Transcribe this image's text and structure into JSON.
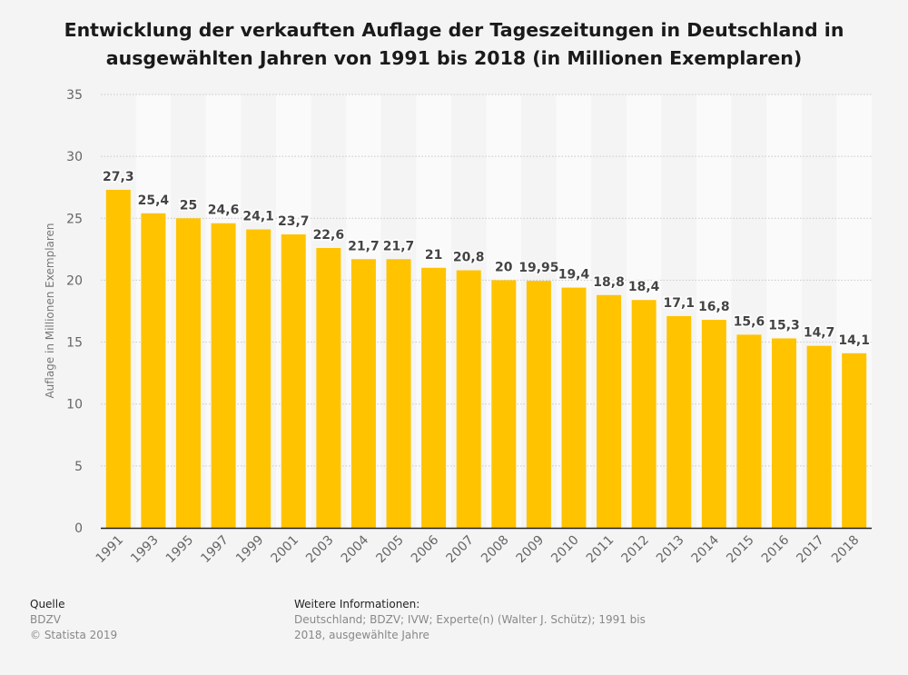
{
  "chart_data": {
    "type": "bar",
    "title": "Entwicklung der verkauften Auflage der Tageszeitungen in Deutschland in ausgewählten Jahren von 1991 bis 2018 (in Millionen Exemplaren)",
    "xlabel": "",
    "ylabel": "Auflage in Millionen Exemplaren",
    "ylim": [
      0,
      35
    ],
    "yticks": [
      0,
      5,
      10,
      15,
      20,
      25,
      30,
      35
    ],
    "grid": true,
    "categories": [
      "1991",
      "1993",
      "1995",
      "1997",
      "1999",
      "2001",
      "2003",
      "2004",
      "2005",
      "2006",
      "2007",
      "2008",
      "2009",
      "2010",
      "2011",
      "2012",
      "2013",
      "2014",
      "2015",
      "2016",
      "2017",
      "2018"
    ],
    "values": [
      27.3,
      25.4,
      25,
      24.6,
      24.1,
      23.7,
      22.6,
      21.7,
      21.7,
      21,
      20.8,
      20,
      19.95,
      19.4,
      18.8,
      18.4,
      17.1,
      16.8,
      15.6,
      15.3,
      14.7,
      14.1
    ],
    "data_labels": [
      "27,3",
      "25,4",
      "25",
      "24,6",
      "24,1",
      "23,7",
      "22,6",
      "21,7",
      "21,7",
      "21",
      "20,8",
      "20",
      "19,95",
      "19,4",
      "18,8",
      "18,4",
      "17,1",
      "16,8",
      "15,6",
      "15,3",
      "14,7",
      "14,1"
    ],
    "bar_color": "#ffc300"
  },
  "footer": {
    "source_heading": "Quelle",
    "source": "BDZV",
    "copyright": "© Statista 2019",
    "info_heading": "Weitere Informationen:",
    "info_line1": "Deutschland; BDZV; IVW; Experte(n) (Walter J. Schütz); 1991 bis",
    "info_line2": "2018, ausgewählte Jahre"
  }
}
